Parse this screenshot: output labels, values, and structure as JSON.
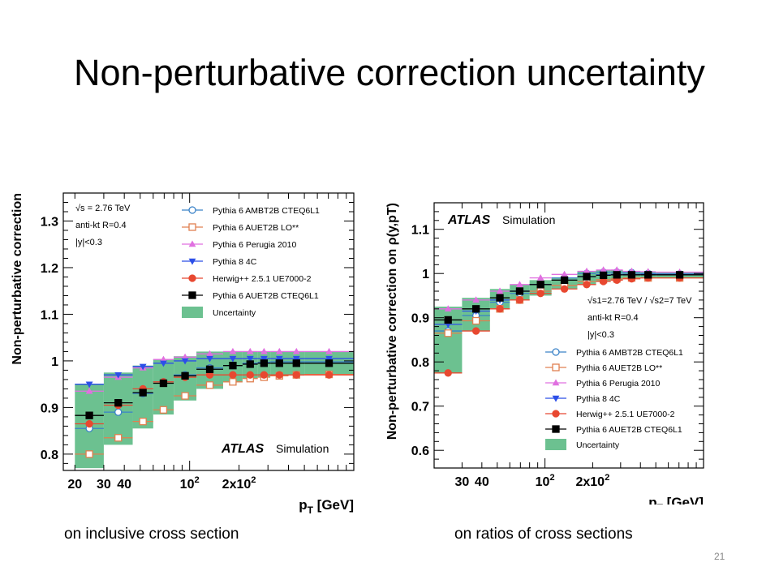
{
  "slide": {
    "title": "Non-perturbative correction uncertainty",
    "caption_left": "on inclusive cross section",
    "caption_right": "on ratios of cross sections",
    "page_number": "21"
  },
  "series_styles": [
    {
      "name": "Pythia 6 AMBT2B CTEQ6L1",
      "color": "#3a82c8",
      "marker": "circle-open"
    },
    {
      "name": "Pythia 6 AUET2B LO**",
      "color": "#e08050",
      "marker": "square-open"
    },
    {
      "name": "Pythia 6 Perugia 2010",
      "color": "#e070e0",
      "marker": "triangle-up"
    },
    {
      "name": "Pythia 8 4C",
      "color": "#2c4fe8",
      "marker": "triangle-down"
    },
    {
      "name": "Herwig++ 2.5.1 UE7000-2",
      "color": "#e84830",
      "marker": "circle"
    },
    {
      "name": "Pythia 6 AUET2B CTEQ6L1",
      "color": "#000000",
      "marker": "square"
    }
  ],
  "band_color": "#6cc190",
  "chart_data": [
    {
      "type": "scatter",
      "xscale": "log",
      "ylabel": "Non-perturbative correction",
      "xlabel": "p_T [GeV]",
      "xlim": [
        17,
        1000
      ],
      "ylim": [
        0.765,
        1.36
      ],
      "x_ticks": [
        {
          "v": 20,
          "label": "20"
        },
        {
          "v": 30,
          "label": "30"
        },
        {
          "v": 40,
          "label": "40"
        },
        {
          "v": 100,
          "label": "10^2"
        },
        {
          "v": 200,
          "label": "2x10^2"
        }
      ],
      "y_ticks": [
        0.8,
        0.9,
        1.0,
        1.1,
        1.2,
        1.3
      ],
      "y_tick_labels": [
        "0.8",
        "0.9",
        "1",
        "1.1",
        "1.2",
        "1.3"
      ],
      "info_lines": [
        "√s = 2.76 TeV",
        "anti-kt R=0.4",
        "|y|<0.3"
      ],
      "atlas_label": "ATLAS",
      "atlas_sublabel": "Simulation",
      "legend_position": "top-right",
      "uncertainty_label": "Uncertainty",
      "bins": [
        [
          20,
          30
        ],
        [
          30,
          45
        ],
        [
          45,
          60
        ],
        [
          60,
          80
        ],
        [
          80,
          110
        ],
        [
          110,
          160
        ],
        [
          160,
          210
        ],
        [
          210,
          260
        ],
        [
          260,
          310
        ],
        [
          310,
          400
        ],
        [
          400,
          500
        ],
        [
          500,
          1000
        ]
      ],
      "band": [
        [
          0.77,
          0.95
        ],
        [
          0.82,
          0.975
        ],
        [
          0.855,
          0.99
        ],
        [
          0.885,
          1.003
        ],
        [
          0.915,
          1.01
        ],
        [
          0.94,
          1.02
        ],
        [
          0.955,
          1.02
        ],
        [
          0.962,
          1.02
        ],
        [
          0.965,
          1.02
        ],
        [
          0.968,
          1.02
        ],
        [
          0.97,
          1.02
        ],
        [
          0.971,
          1.02
        ]
      ],
      "series": [
        {
          "name": "Pythia 6 AMBT2B CTEQ6L1",
          "values": [
            0.855,
            0.89,
            0.93,
            0.955,
            0.97,
            0.985,
            0.99,
            0.995,
            0.997,
            0.998,
            0.998,
            0.998
          ]
        },
        {
          "name": "Pythia 6 AUET2B LO**",
          "values": [
            0.8,
            0.835,
            0.87,
            0.895,
            0.925,
            0.948,
            0.955,
            0.962,
            0.965,
            0.968,
            0.97,
            0.971
          ]
        },
        {
          "name": "Pythia 6 Perugia 2010",
          "values": [
            0.935,
            0.965,
            0.985,
            1.003,
            1.008,
            1.015,
            1.02,
            1.02,
            1.02,
            1.02,
            1.02,
            1.02
          ]
        },
        {
          "name": "Pythia 8 4C",
          "values": [
            0.95,
            0.97,
            0.988,
            0.995,
            1.0,
            1.005,
            1.005,
            1.005,
            1.005,
            1.005,
            1.005,
            1.005
          ]
        },
        {
          "name": "Herwig++ 2.5.1 UE7000-2",
          "values": [
            0.865,
            0.905,
            0.94,
            0.955,
            0.965,
            0.97,
            0.97,
            0.97,
            0.97,
            0.97,
            0.97,
            0.97
          ]
        },
        {
          "name": "Pythia 6 AUET2B CTEQ6L1",
          "values": [
            0.883,
            0.91,
            0.932,
            0.952,
            0.968,
            0.982,
            0.99,
            0.993,
            0.995,
            0.995,
            0.995,
            0.995
          ]
        }
      ]
    },
    {
      "type": "scatter",
      "xscale": "log",
      "ylabel": "Non-perturbative correction on ρ(y,pT)",
      "xlabel": "p_T [GeV]",
      "xlim": [
        20,
        1000
      ],
      "ylim": [
        0.56,
        1.16
      ],
      "x_ticks": [
        {
          "v": 30,
          "label": "30"
        },
        {
          "v": 40,
          "label": "40"
        },
        {
          "v": 100,
          "label": "10^2"
        },
        {
          "v": 200,
          "label": "2x10^2"
        }
      ],
      "y_ticks": [
        0.6,
        0.7,
        0.8,
        0.9,
        1.0,
        1.1
      ],
      "y_tick_labels": [
        "0.6",
        "0.7",
        "0.8",
        "0.9",
        "1",
        "1.1"
      ],
      "info_lines": [
        "√s1=2.76 TeV / √s2=7 TeV",
        "anti-kt R=0.4",
        "|y|<0.3"
      ],
      "atlas_label": "ATLAS",
      "atlas_sublabel": "Simulation",
      "legend_position": "bottom-right",
      "uncertainty_label": "Uncertainty",
      "bins": [
        [
          20,
          30
        ],
        [
          30,
          45
        ],
        [
          45,
          60
        ],
        [
          60,
          80
        ],
        [
          80,
          110
        ],
        [
          110,
          160
        ],
        [
          160,
          210
        ],
        [
          210,
          260
        ],
        [
          260,
          310
        ],
        [
          310,
          400
        ],
        [
          400,
          500
        ],
        [
          500,
          1000
        ]
      ],
      "band": [
        [
          0.775,
          0.925
        ],
        [
          0.87,
          0.945
        ],
        [
          0.92,
          0.965
        ],
        [
          0.94,
          0.975
        ],
        [
          0.95,
          0.985
        ],
        [
          0.965,
          0.99
        ],
        [
          0.975,
          1.005
        ],
        [
          0.982,
          1.008
        ],
        [
          0.985,
          1.008
        ],
        [
          0.988,
          1.005
        ],
        [
          0.99,
          1.004
        ],
        [
          0.99,
          1.004
        ]
      ],
      "series": [
        {
          "name": "Pythia 6 AMBT2B CTEQ6L1",
          "values": [
            0.87,
            0.905,
            0.935,
            0.955,
            0.975,
            0.99,
            1.0,
            1.003,
            1.003,
            1.002,
            1.0,
            0.999
          ]
        },
        {
          "name": "Pythia 6 AUET2B LO**",
          "values": [
            0.865,
            0.893,
            0.92,
            0.94,
            0.96,
            0.973,
            0.982,
            0.986,
            0.988,
            0.99,
            0.99,
            0.99
          ]
        },
        {
          "name": "Pythia 6 Perugia 2010",
          "values": [
            0.92,
            0.94,
            0.96,
            0.975,
            0.99,
            0.998,
            1.005,
            1.008,
            1.008,
            1.005,
            1.004,
            1.003
          ]
        },
        {
          "name": "Pythia 8 4C",
          "values": [
            0.885,
            0.915,
            0.94,
            0.96,
            0.975,
            0.985,
            0.993,
            0.997,
            0.998,
            0.998,
            0.998,
            0.998
          ]
        },
        {
          "name": "Herwig++ 2.5.1 UE7000-2",
          "values": [
            0.775,
            0.87,
            0.92,
            0.94,
            0.955,
            0.965,
            0.975,
            0.982,
            0.985,
            0.988,
            0.99,
            0.99
          ]
        },
        {
          "name": "Pythia 6 AUET2B CTEQ6L1",
          "values": [
            0.895,
            0.92,
            0.945,
            0.96,
            0.975,
            0.985,
            0.993,
            0.996,
            0.997,
            0.997,
            0.997,
            0.997
          ]
        }
      ]
    }
  ]
}
